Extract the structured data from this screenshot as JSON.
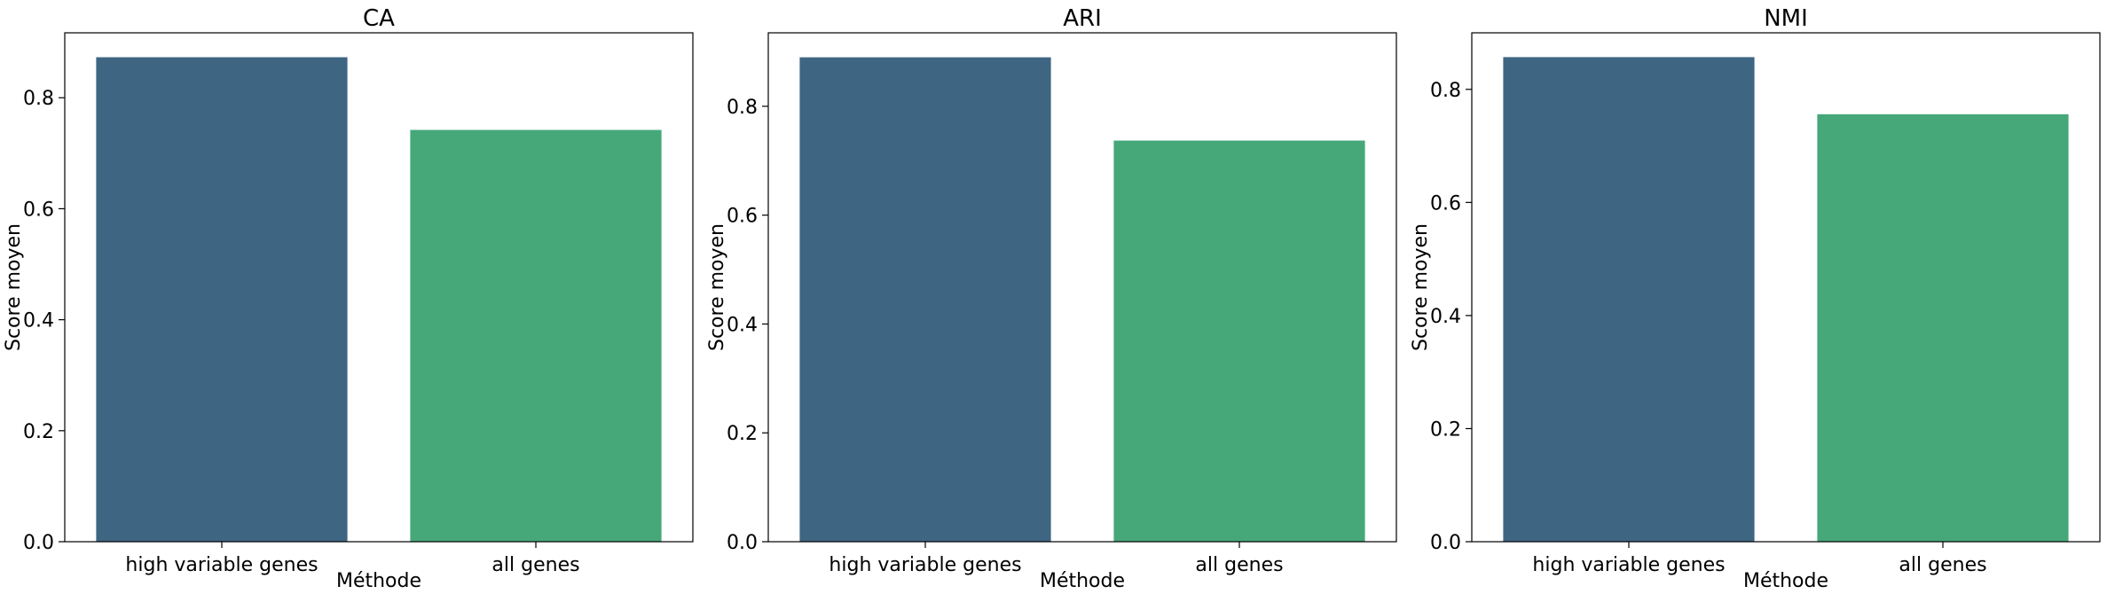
{
  "chart_data": [
    {
      "type": "bar",
      "title": "CA",
      "xlabel": "Méthode",
      "ylabel": "Score moyen",
      "categories": [
        "high variable genes",
        "all genes"
      ],
      "values": [
        0.873,
        0.742
      ],
      "ylim": [
        0,
        0.917
      ],
      "yticks": [
        0.0,
        0.2,
        0.4,
        0.6,
        0.8
      ],
      "ytick_labels": [
        "0.0",
        "0.2",
        "0.4",
        "0.6",
        "0.8"
      ],
      "bar_colors": [
        "#3e6683",
        "#46a879"
      ],
      "grid": false,
      "legend": "none"
    },
    {
      "type": "bar",
      "title": "ARI",
      "xlabel": "Méthode",
      "ylabel": "Score moyen",
      "categories": [
        "high variable genes",
        "all genes"
      ],
      "values": [
        0.89,
        0.737
      ],
      "ylim": [
        0,
        0.935
      ],
      "yticks": [
        0.0,
        0.2,
        0.4,
        0.6,
        0.8
      ],
      "ytick_labels": [
        "0.0",
        "0.2",
        "0.4",
        "0.6",
        "0.8"
      ],
      "bar_colors": [
        "#3e6683",
        "#46a879"
      ],
      "grid": false,
      "legend": "none"
    },
    {
      "type": "bar",
      "title": "NMI",
      "xlabel": "Méthode",
      "ylabel": "Score moyen",
      "categories": [
        "high variable genes",
        "all genes"
      ],
      "values": [
        0.857,
        0.756
      ],
      "ylim": [
        0,
        0.9
      ],
      "yticks": [
        0.0,
        0.2,
        0.4,
        0.6,
        0.8
      ],
      "ytick_labels": [
        "0.0",
        "0.2",
        "0.4",
        "0.6",
        "0.8"
      ],
      "bar_colors": [
        "#3e6683",
        "#46a879"
      ],
      "grid": false,
      "legend": "none"
    }
  ]
}
